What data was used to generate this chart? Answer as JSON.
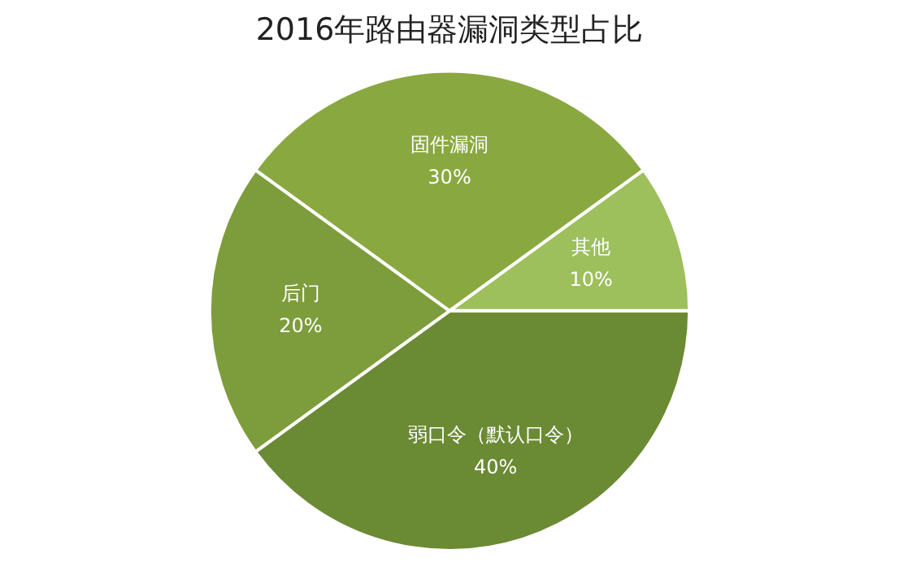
{
  "chart_data": {
    "type": "pie",
    "title": "2016年路由器漏洞类型占比",
    "categories": [
      "固件漏洞",
      "其他",
      "弱口令（默认口令）",
      "后门"
    ],
    "values": [
      30,
      10,
      40,
      20
    ],
    "colors": [
      "#8aa840",
      "#9dbf5c",
      "#6b8a34",
      "#7d9c3b"
    ],
    "value_labels": [
      "30%",
      "10%",
      "40%",
      "20%"
    ],
    "legend": false
  }
}
